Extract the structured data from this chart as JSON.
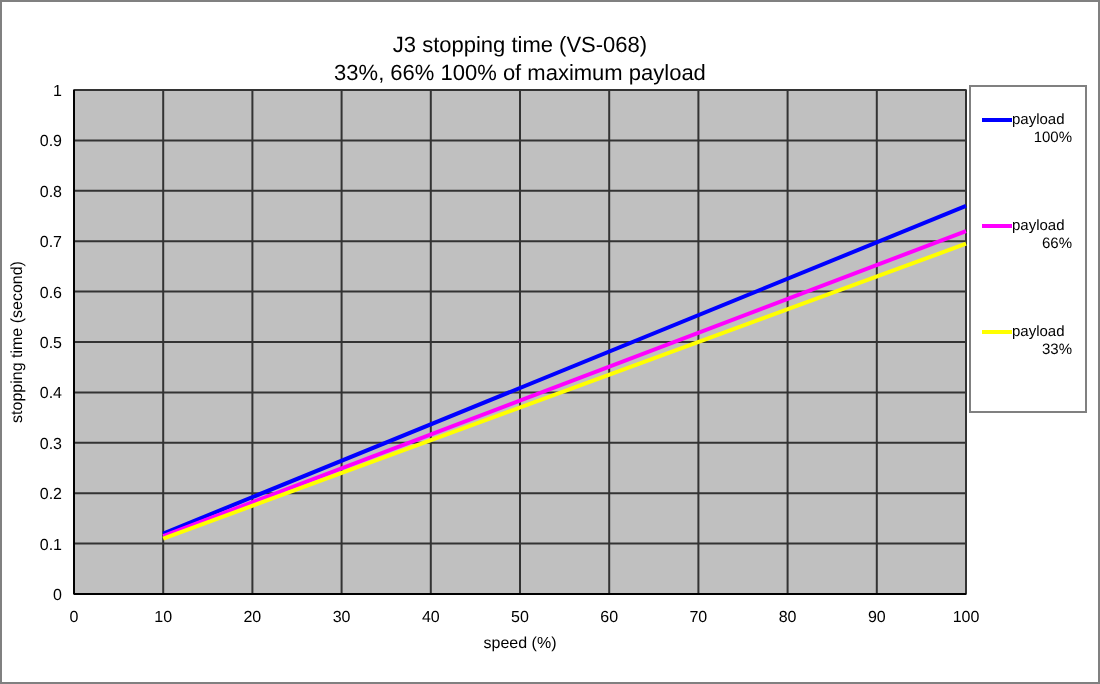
{
  "chart_data": {
    "type": "line",
    "title": "J3 stopping time (VS-068)",
    "subtitle": "33%, 66% 100% of maximum payload",
    "xlabel": "speed (%)",
    "ylabel": "stopping time (second)",
    "x": [
      10,
      100
    ],
    "series": [
      {
        "name": "payload 100%",
        "color": "#0000ff",
        "values": [
          0.12,
          0.77
        ]
      },
      {
        "name": "payload 66%",
        "color": "#ff00ff",
        "values": [
          0.115,
          0.72
        ]
      },
      {
        "name": "payload 33%",
        "color": "#ffff00",
        "values": [
          0.11,
          0.695
        ]
      }
    ],
    "xlim": [
      0,
      100
    ],
    "xticks": [
      0,
      10,
      20,
      30,
      40,
      50,
      60,
      70,
      80,
      90,
      100
    ],
    "ylim": [
      0,
      1
    ],
    "yticks": [
      0,
      0.1,
      0.2,
      0.3,
      0.4,
      0.5,
      0.6,
      0.7,
      0.8,
      0.9,
      1
    ],
    "grid": true,
    "legend": "right",
    "marker": "none",
    "line_style": "solid"
  }
}
